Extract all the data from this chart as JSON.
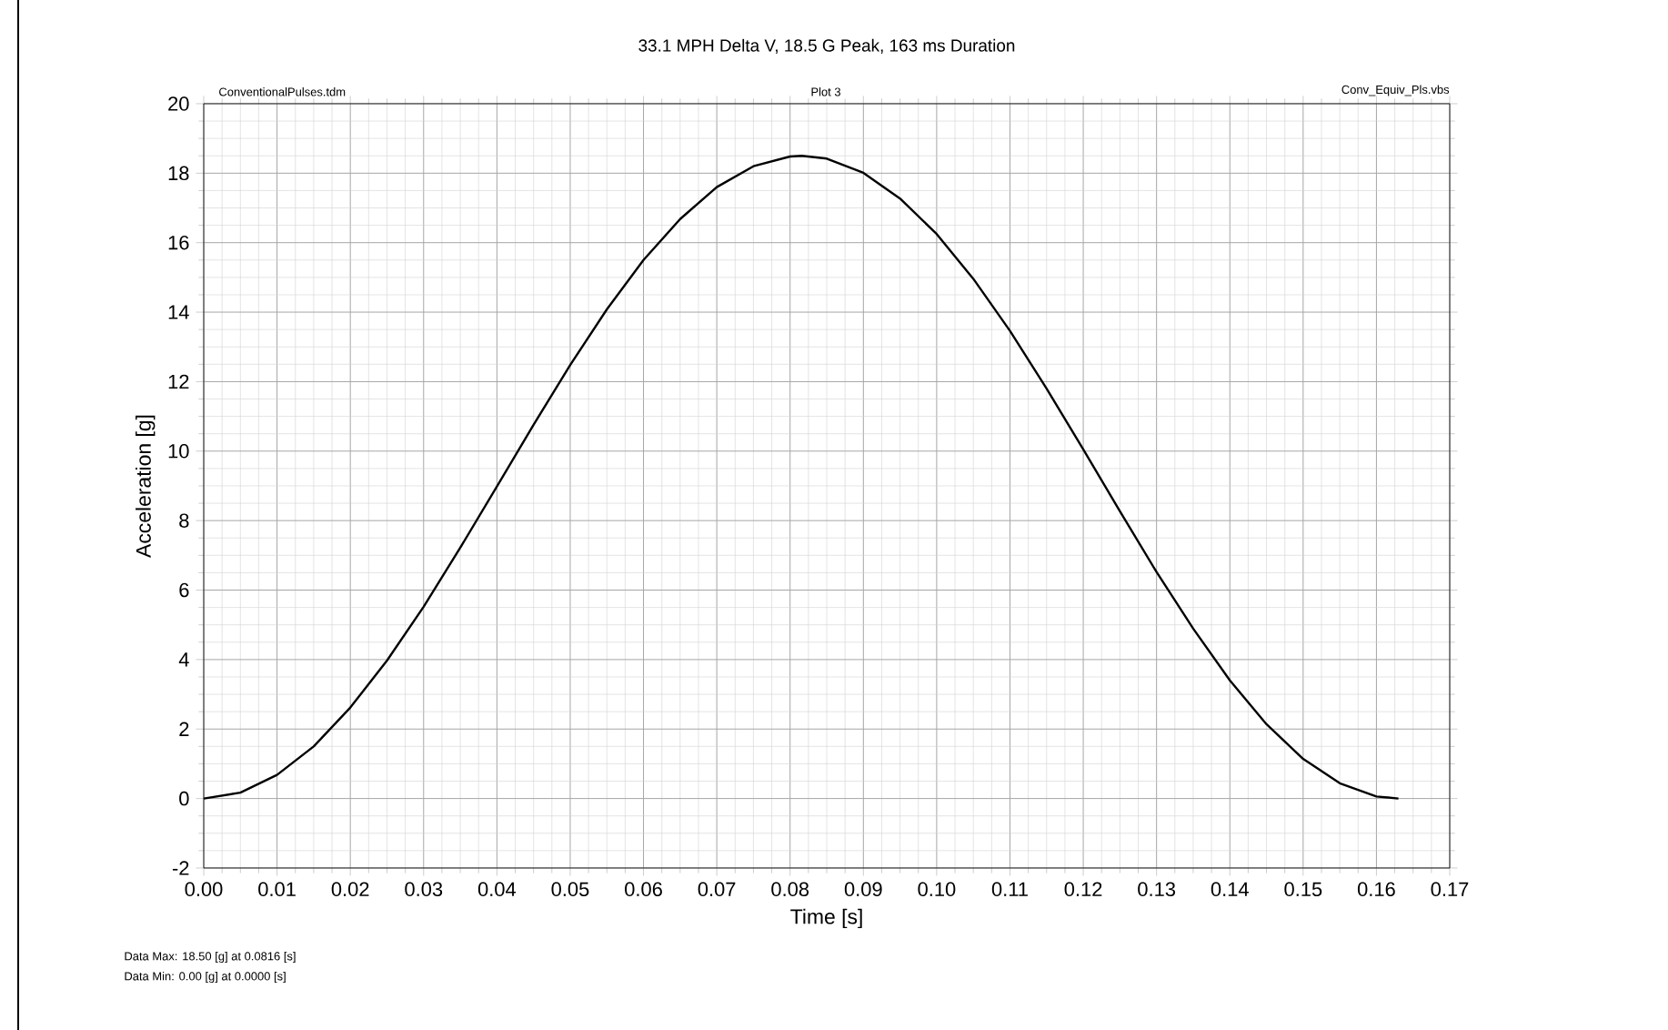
{
  "chart_data": {
    "type": "line",
    "title": "33.1 MPH Delta V, 18.5 G Peak, 163 ms Duration",
    "xlabel": "Time [s]",
    "ylabel": "Acceleration [g]",
    "annotations": [
      "ConventionalPulses.tdm",
      "Plot 3",
      "Conv_Equiv_Pls.vbs",
      "Data Max: 18.50 [g]  at 0.0816 [s]",
      "Data Min: 0.00 [g]  at 0.0000 [s]"
    ],
    "x": [
      0,
      0.005,
      0.01,
      0.015,
      0.02,
      0.025,
      0.03,
      0.035,
      0.04,
      0.045,
      0.05,
      0.055,
      0.06,
      0.065,
      0.07,
      0.075,
      0.08,
      0.0816,
      0.085,
      0.09,
      0.095,
      0.1,
      0.105,
      0.11,
      0.115,
      0.12,
      0.125,
      0.13,
      0.135,
      0.14,
      0.145,
      0.15,
      0.155,
      0.16,
      0.163
    ],
    "series": [
      {
        "color": "#000000",
        "values": [
          0,
          0.17,
          0.68,
          1.5,
          2.62,
          3.97,
          5.52,
          7.22,
          8.98,
          10.76,
          12.48,
          14.08,
          15.5,
          16.68,
          17.6,
          18.2,
          18.48,
          18.5,
          18.42,
          18.01,
          17.27,
          16.25,
          14.96,
          13.46,
          11.8,
          10.05,
          8.27,
          6.52,
          4.89,
          3.4,
          2.14,
          1.14,
          0.44,
          0.06,
          0
        ]
      }
    ],
    "xlim": [
      0,
      0.17
    ],
    "ylim": [
      -2,
      20
    ],
    "xticks": [
      {
        "value": 0,
        "label": "0.00"
      },
      {
        "value": 0.01,
        "label": "0.01"
      },
      {
        "value": 0.02,
        "label": "0.02"
      },
      {
        "value": 0.03,
        "label": "0.03"
      },
      {
        "value": 0.04,
        "label": "0.04"
      },
      {
        "value": 0.05,
        "label": "0.05"
      },
      {
        "value": 0.06,
        "label": "0.06"
      },
      {
        "value": 0.07,
        "label": "0.07"
      },
      {
        "value": 0.08,
        "label": "0.08"
      },
      {
        "value": 0.09,
        "label": "0.09"
      },
      {
        "value": 0.1,
        "label": "0.10"
      },
      {
        "value": 0.11,
        "label": "0.11"
      },
      {
        "value": 0.12,
        "label": "0.12"
      },
      {
        "value": 0.13,
        "label": "0.13"
      },
      {
        "value": 0.14,
        "label": "0.14"
      },
      {
        "value": 0.15,
        "label": "0.15"
      },
      {
        "value": 0.16,
        "label": "0.16"
      },
      {
        "value": 0.17,
        "label": "0.17"
      }
    ],
    "yticks": [
      -2,
      0,
      2,
      4,
      6,
      8,
      10,
      12,
      14,
      16,
      18,
      20
    ],
    "grid": true,
    "marker": "none",
    "line_style": "solid"
  }
}
